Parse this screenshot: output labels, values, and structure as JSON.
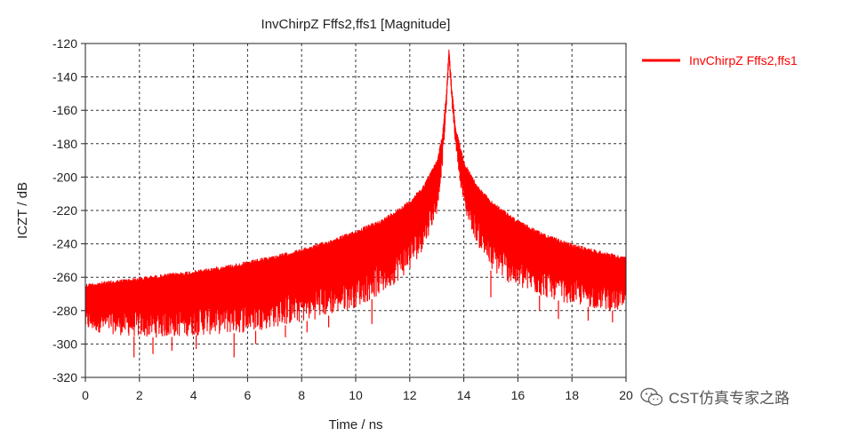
{
  "chart_data": {
    "type": "line",
    "title": "InvChirpZ Fffs2,ffs1 [Magnitude]",
    "xlabel": "Time / ns",
    "ylabel": "ICZT / dB",
    "xlim": [
      0,
      20
    ],
    "ylim": [
      -320,
      -120
    ],
    "x_ticks": [
      0,
      2,
      4,
      6,
      8,
      10,
      12,
      14,
      16,
      18,
      20
    ],
    "y_ticks": [
      -120,
      -140,
      -160,
      -180,
      -200,
      -220,
      -240,
      -260,
      -280,
      -300,
      -320
    ],
    "grid": true,
    "legend_position": "right",
    "series": [
      {
        "name": "InvChirpZ Fffs2,ffs1",
        "color": "#ff0000",
        "upper_envelope": {
          "x": [
            0,
            1,
            2,
            3,
            4,
            5,
            6,
            7,
            8,
            9,
            10,
            11,
            12,
            12.5,
            13,
            13.2,
            13.35,
            13.45,
            13.55,
            13.7,
            14,
            14.5,
            15,
            16,
            17,
            18,
            19,
            20
          ],
          "y": [
            -264,
            -262,
            -260,
            -258,
            -256,
            -253.5,
            -250.5,
            -247,
            -243,
            -238,
            -232,
            -225,
            -214,
            -205,
            -190,
            -175,
            -150,
            -122,
            -145,
            -170,
            -190,
            -205,
            -214,
            -226,
            -234,
            -240,
            -244,
            -248
          ]
        },
        "lower_envelope": {
          "x": [
            0,
            1,
            2,
            3,
            4,
            5,
            6,
            7,
            8,
            9,
            10,
            11,
            12,
            12.5,
            13,
            13.2,
            13.35,
            13.45,
            13.55,
            13.7,
            14,
            14.5,
            15,
            16,
            17,
            18,
            19,
            20
          ],
          "y": [
            -292,
            -294,
            -296,
            -296,
            -295,
            -294,
            -293,
            -290,
            -287,
            -283,
            -278,
            -270,
            -256,
            -243,
            -222,
            -195,
            -162,
            -128,
            -155,
            -182,
            -220,
            -240,
            -256,
            -267,
            -272,
            -276,
            -279,
            -281
          ]
        },
        "deep_nulls": {
          "x": [
            1.8,
            2.5,
            3.2,
            4.1,
            5.5,
            6.3,
            7.4,
            8.2,
            9.0,
            10.6,
            15.0,
            16.8,
            17.5,
            18.6,
            19.5
          ],
          "y": [
            -308,
            -306,
            -304,
            -303,
            -308,
            -300,
            -296,
            -293,
            -290,
            -288,
            -272,
            -280,
            -285,
            -286,
            -287
          ]
        }
      }
    ]
  },
  "watermark": {
    "text": "CST仿真专家之路",
    "icon": "wechat-icon"
  }
}
